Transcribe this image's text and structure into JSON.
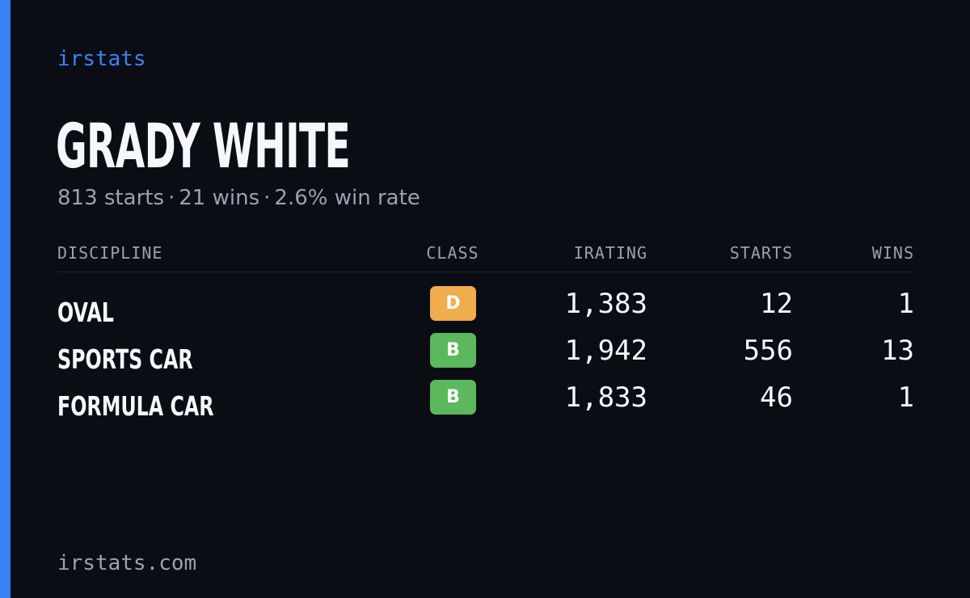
{
  "brand": "irstats",
  "driver": {
    "name": "GRADY WHITE",
    "summary": {
      "starts": "813 starts",
      "wins": "21 wins",
      "win_rate": "2.6% win rate",
      "separator": "·"
    }
  },
  "table": {
    "headers": {
      "discipline": "DISCIPLINE",
      "class": "CLASS",
      "irating": "IRATING",
      "starts": "STARTS",
      "wins": "WINS"
    },
    "rows": [
      {
        "discipline": "OVAL",
        "class": "D",
        "class_color": "#f0ad4e",
        "irating": "1,383",
        "starts": "12",
        "wins": "1"
      },
      {
        "discipline": "SPORTS CAR",
        "class": "B",
        "class_color": "#5cb85c",
        "irating": "1,942",
        "starts": "556",
        "wins": "13"
      },
      {
        "discipline": "FORMULA CAR",
        "class": "B",
        "class_color": "#5cb85c",
        "irating": "1,833",
        "starts": "46",
        "wins": "1"
      }
    ]
  },
  "footer": "irstats.com",
  "colors": {
    "accent": "#3b82f6",
    "background": "#0a0d14",
    "muted_text": "#98a2b3"
  }
}
